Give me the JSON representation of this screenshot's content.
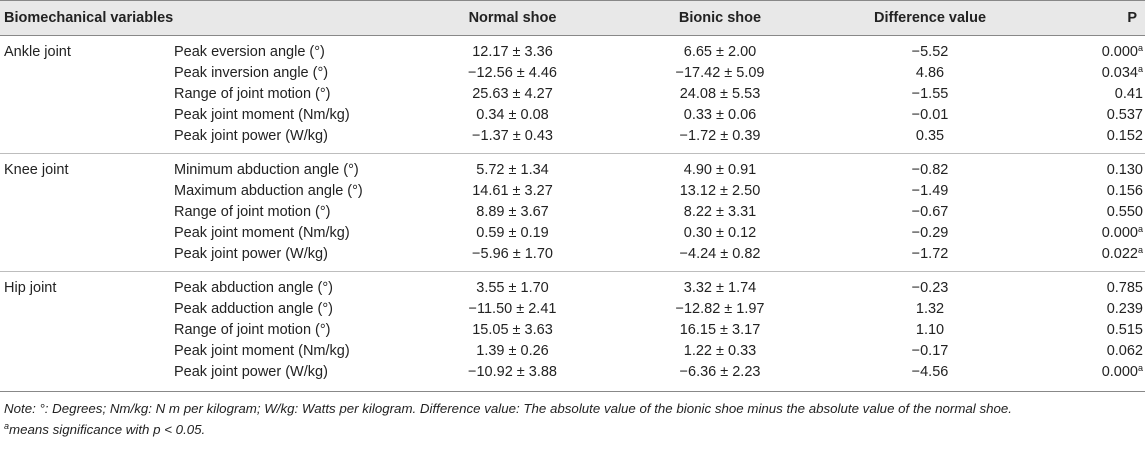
{
  "headers": {
    "variables": "Biomechanical variables",
    "normal": "Normal shoe",
    "bionic": "Bionic shoe",
    "difference": "Difference value",
    "p": "P"
  },
  "groups": [
    {
      "name": "Ankle joint",
      "rows": [
        {
          "variable": "Peak eversion angle (°)",
          "normal": "12.17 ± 3.36",
          "bionic": "6.65 ± 2.00",
          "difference": "−5.52",
          "p": "0.000",
          "sig": "a"
        },
        {
          "variable": "Peak inversion angle (°)",
          "normal": "−12.56 ± 4.46",
          "bionic": "−17.42 ± 5.09",
          "difference": "4.86",
          "p": "0.034",
          "sig": "a"
        },
        {
          "variable": "Range of joint motion (°)",
          "normal": "25.63 ± 4.27",
          "bionic": "24.08 ± 5.53",
          "difference": "−1.55",
          "p": "0.41",
          "sig": ""
        },
        {
          "variable": "Peak joint moment (Nm/kg)",
          "normal": "0.34 ± 0.08",
          "bionic": "0.33 ± 0.06",
          "difference": "−0.01",
          "p": "0.537",
          "sig": ""
        },
        {
          "variable": "Peak joint power (W/kg)",
          "normal": "−1.37 ± 0.43",
          "bionic": "−1.72 ± 0.39",
          "difference": "0.35",
          "p": "0.152",
          "sig": ""
        }
      ]
    },
    {
      "name": "Knee joint",
      "rows": [
        {
          "variable": "Minimum abduction angle (°)",
          "normal": "5.72 ± 1.34",
          "bionic": "4.90 ± 0.91",
          "difference": "−0.82",
          "p": "0.130",
          "sig": ""
        },
        {
          "variable": "Maximum abduction angle (°)",
          "normal": "14.61 ± 3.27",
          "bionic": "13.12 ± 2.50",
          "difference": "−1.49",
          "p": "0.156",
          "sig": ""
        },
        {
          "variable": "Range of joint motion (°)",
          "normal": "8.89 ± 3.67",
          "bionic": "8.22 ± 3.31",
          "difference": "−0.67",
          "p": "0.550",
          "sig": ""
        },
        {
          "variable": "Peak joint moment (Nm/kg)",
          "normal": "0.59 ± 0.19",
          "bionic": "0.30 ± 0.12",
          "difference": "−0.29",
          "p": "0.000",
          "sig": "a"
        },
        {
          "variable": "Peak joint power (W/kg)",
          "normal": "−5.96 ± 1.70",
          "bionic": "−4.24 ± 0.82",
          "difference": "−1.72",
          "p": "0.022",
          "sig": "a"
        }
      ]
    },
    {
      "name": "Hip joint",
      "rows": [
        {
          "variable": "Peak abduction angle (°)",
          "normal": "3.55 ± 1.70",
          "bionic": "3.32 ± 1.74",
          "difference": "−0.23",
          "p": "0.785",
          "sig": ""
        },
        {
          "variable": "Peak adduction angle (°)",
          "normal": "−11.50 ± 2.41",
          "bionic": "−12.82 ± 1.97",
          "difference": "1.32",
          "p": "0.239",
          "sig": ""
        },
        {
          "variable": "Range of joint motion (°)",
          "normal": "15.05 ± 3.63",
          "bionic": "16.15 ± 3.17",
          "difference": "1.10",
          "p": "0.515",
          "sig": ""
        },
        {
          "variable": "Peak joint moment (Nm/kg)",
          "normal": "1.39 ± 0.26",
          "bionic": "1.22 ± 0.33",
          "difference": "−0.17",
          "p": "0.062",
          "sig": ""
        },
        {
          "variable": "Peak joint power (W/kg)",
          "normal": "−10.92 ± 3.88",
          "bionic": "−6.36 ± 2.23",
          "difference": "−4.56",
          "p": "0.000",
          "sig": "a"
        }
      ]
    }
  ],
  "notes": {
    "line1": "Note: °: Degrees; Nm/kg: N m per kilogram; W/kg: Watts per kilogram. Difference value: The absolute value of the bionic shoe minus the absolute value of the normal shoe.",
    "line2_sup": "a",
    "line2": "means significance with p < 0.05."
  }
}
